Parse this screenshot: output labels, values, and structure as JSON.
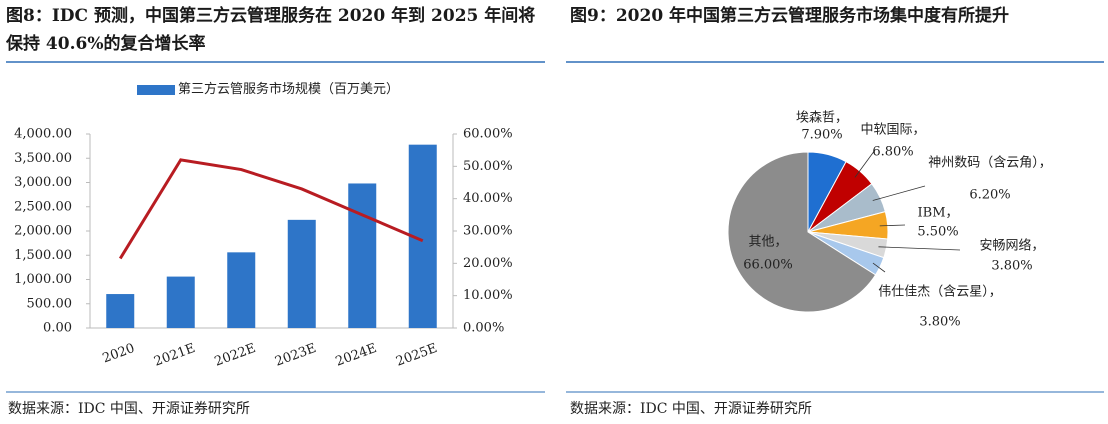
{
  "chart_data": [
    {
      "type": "bar",
      "title": "图8：IDC 预测，中国第三方云管理服务在 2020 年到 2025 年间将保持 40.6%的复合增长率",
      "categories": [
        "2020",
        "2021E",
        "2022E",
        "2023E",
        "2024E",
        "2025E"
      ],
      "series": [
        {
          "name": "第三方云管服务市场规模（百万美元）",
          "type": "bar",
          "color": "#2e75c8",
          "values": [
            700,
            1060,
            1560,
            2230,
            2980,
            3780
          ]
        },
        {
          "type": "line",
          "axis": "y2",
          "color": "#b81c22",
          "values": [
            21.5,
            52,
            49,
            43,
            35,
            27
          ]
        }
      ],
      "ylim": [
        0,
        4000
      ],
      "yticks": [
        {
          "value": 0,
          "label": "0.00"
        },
        {
          "value": 500,
          "label": "500.00"
        },
        {
          "value": 1000,
          "label": "1,000.00"
        },
        {
          "value": 1500,
          "label": "1,500.00"
        },
        {
          "value": 2000,
          "label": "2,000.00"
        },
        {
          "value": 2500,
          "label": "2,500.00"
        },
        {
          "value": 3000,
          "label": "3,000.00"
        },
        {
          "value": 3500,
          "label": "3,500.00"
        },
        {
          "value": 4000,
          "label": "4,000.00"
        }
      ],
      "y2lim": [
        0,
        60
      ],
      "y2ticks": [
        {
          "value": 0,
          "label": "0.00%"
        },
        {
          "value": 10,
          "label": "10.00%"
        },
        {
          "value": 20,
          "label": "20.00%"
        },
        {
          "value": 30,
          "label": "30.00%"
        },
        {
          "value": 40,
          "label": "40.00%"
        },
        {
          "value": 50,
          "label": "50.00%"
        },
        {
          "value": 60,
          "label": "60.00%"
        }
      ],
      "source": "数据来源：IDC 中国、开源证券研究所"
    },
    {
      "type": "pie",
      "title": "图9：2020 年中国第三方云管理服务市场集中度有所提升",
      "categories": [
        "埃森哲，",
        "中软国际，",
        "神州数码（含云角），",
        "IBM，",
        "安畅网络，",
        "伟仕佳杰（含云星），",
        "其他，"
      ],
      "values": [
        7.9,
        6.8,
        6.2,
        5.5,
        3.8,
        3.8,
        66
      ],
      "value_labels": [
        "7.90%",
        "6.80%",
        "6.20%",
        "5.50%",
        "3.80%",
        "3.80%",
        "66.00%"
      ],
      "colors": [
        "#1f6fd1",
        "#c00000",
        "#a9bccb",
        "#f5a623",
        "#d9d9d9",
        "#a8c8ec",
        "#8c8c8c"
      ],
      "source": "数据来源：IDC 中国、开源证券研究所"
    }
  ]
}
